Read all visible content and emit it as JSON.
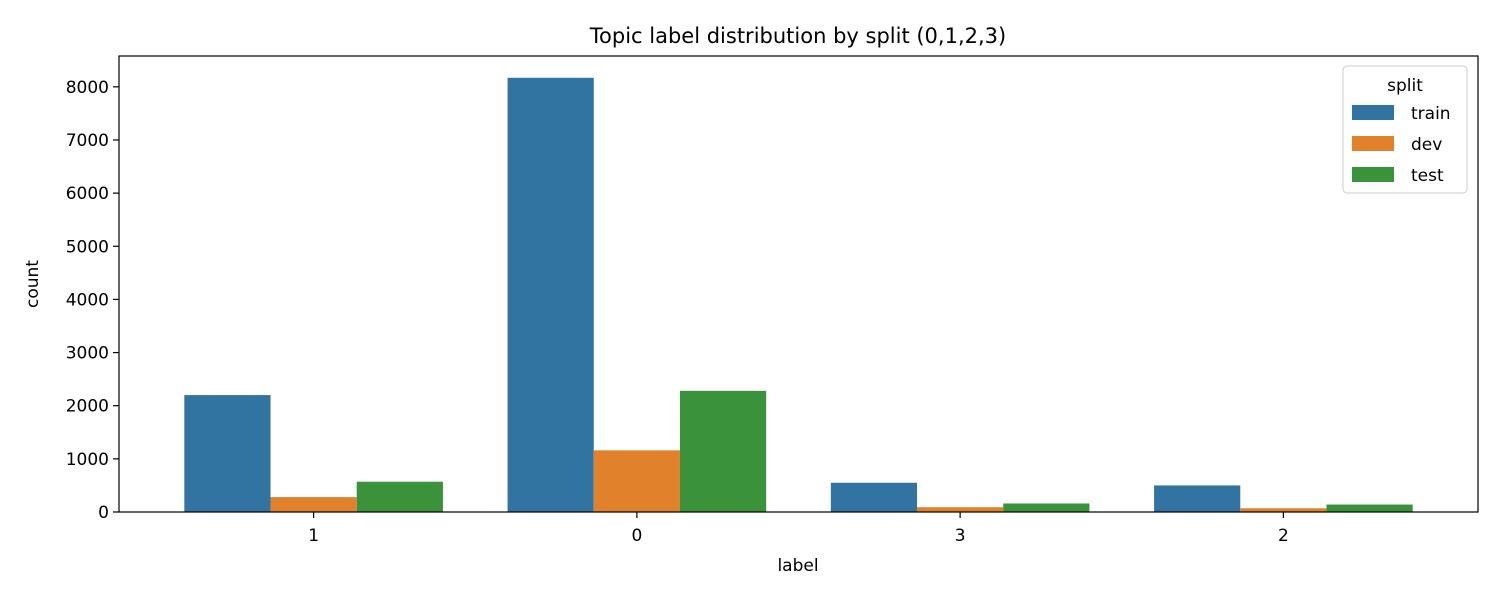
{
  "chart_data": {
    "type": "bar",
    "title": "Topic label distribution by split (0,1,2,3)",
    "xlabel": "label",
    "ylabel": "count",
    "categories": [
      "1",
      "0",
      "3",
      "2"
    ],
    "series": [
      {
        "name": "train",
        "color": "#3274a1",
        "values": [
          2200,
          8170,
          550,
          500
        ]
      },
      {
        "name": "dev",
        "color": "#e1812c",
        "values": [
          280,
          1160,
          90,
          70
        ]
      },
      {
        "name": "test",
        "color": "#3a923a",
        "values": [
          570,
          2280,
          160,
          140
        ]
      }
    ],
    "ylim": [
      0,
      8580
    ],
    "yticks": [
      0,
      1000,
      2000,
      3000,
      4000,
      5000,
      6000,
      7000,
      8000
    ],
    "grid": false,
    "legend": {
      "title": "split",
      "placement": "top-right"
    }
  }
}
